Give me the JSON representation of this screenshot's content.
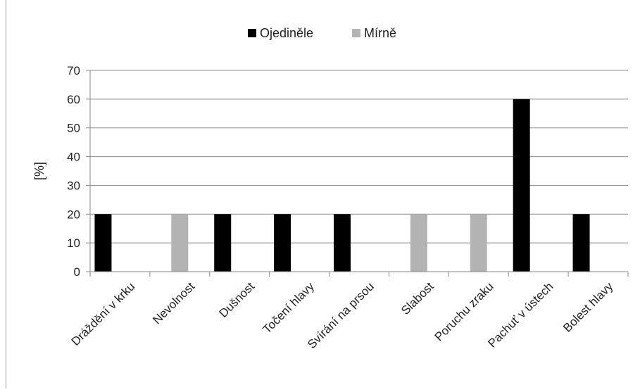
{
  "chart_data": {
    "type": "bar",
    "title": "",
    "xlabel": "",
    "ylabel": "[%]",
    "ylim": [
      0,
      70
    ],
    "yticks": [
      0,
      10,
      20,
      30,
      40,
      50,
      60,
      70
    ],
    "grid": true,
    "legend_position": "top",
    "categories": [
      "Dráždění v krku",
      "Nevolnost",
      "Dušnost",
      "Točení hlavy",
      "Svírání na prsou",
      "Slabost",
      "Poruchu zraku",
      "Pachuť v ústech",
      "Bolest hlavy"
    ],
    "series": [
      {
        "name": "Ojediněle",
        "color": "#000000",
        "values": [
          20,
          0,
          20,
          20,
          20,
          0,
          0,
          60,
          20
        ]
      },
      {
        "name": "Mírně",
        "color": "#b3b3b3",
        "values": [
          0,
          20,
          0,
          0,
          0,
          20,
          20,
          0,
          0
        ]
      }
    ]
  }
}
